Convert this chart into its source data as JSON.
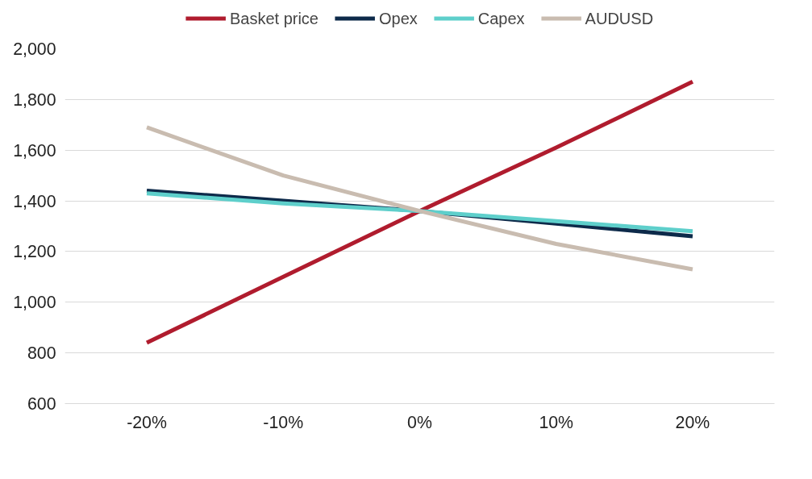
{
  "chart_data": {
    "type": "line",
    "categories": [
      "-20%",
      "-10%",
      "0%",
      "10%",
      "20%"
    ],
    "series": [
      {
        "name": "Basket price",
        "color": "#b01c2e",
        "values": [
          840,
          1100,
          1360,
          1610,
          1870
        ]
      },
      {
        "name": "Opex",
        "color": "#0d2a4a",
        "values": [
          1440,
          1400,
          1360,
          1310,
          1260
        ]
      },
      {
        "name": "Capex",
        "color": "#5ecfcb",
        "values": [
          1430,
          1390,
          1360,
          1320,
          1280
        ]
      },
      {
        "name": "AUDUSD",
        "color": "#c9bcb0",
        "values": [
          1690,
          1500,
          1360,
          1230,
          1130
        ]
      }
    ],
    "ylim": [
      600,
      2000
    ],
    "yticks": [
      {
        "value": 600,
        "label": "600"
      },
      {
        "value": 800,
        "label": "800"
      },
      {
        "value": 1000,
        "label": "1,000"
      },
      {
        "value": 1200,
        "label": "1,200"
      },
      {
        "value": 1400,
        "label": "1,400"
      },
      {
        "value": 1600,
        "label": "1,600"
      },
      {
        "value": 1800,
        "label": "1,800"
      },
      {
        "value": 2000,
        "label": "2,000"
      }
    ],
    "grid": "y",
    "legend": "top",
    "marker": "none",
    "line_style": "solid"
  }
}
